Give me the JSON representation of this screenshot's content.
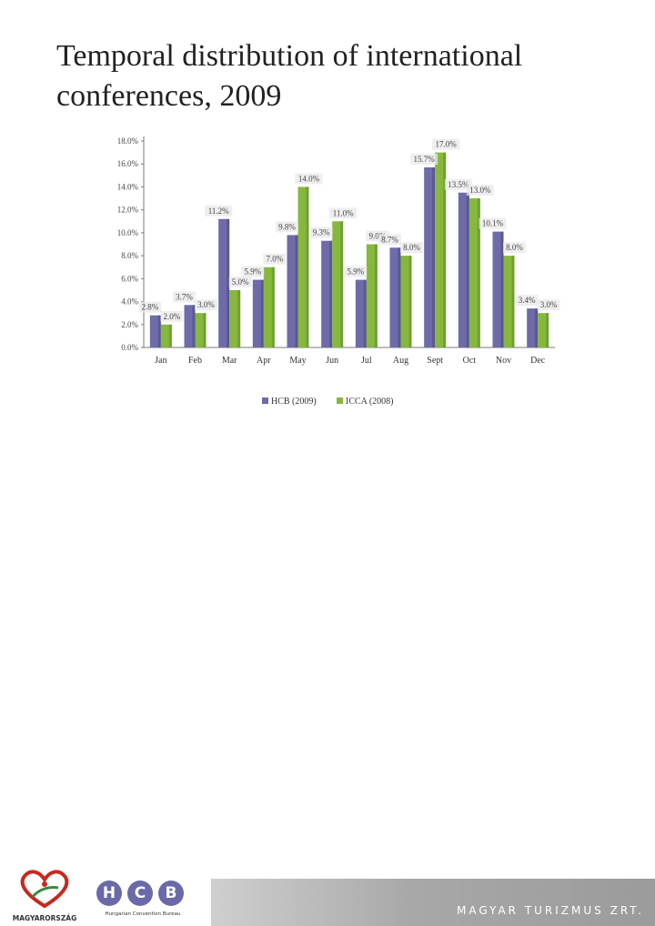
{
  "title": "Temporal distribution of international conferences, 2009",
  "colors": {
    "hcb": "#6e6ba8",
    "icca": "#86b83e"
  },
  "footer": {
    "country_logo_text": "MAGYARORSZÁG",
    "hcb_logo_letters": [
      "H",
      "C",
      "B"
    ],
    "hcb_logo_subtext": "Hungarian Convention Bureau",
    "banner_text": "MAGYAR TURIZMUS ZRT."
  },
  "chart_data": {
    "type": "bar",
    "title": "",
    "xlabel": "",
    "ylabel": "",
    "ylim": [
      0,
      18
    ],
    "yticks": [
      "0.0%",
      "2.0%",
      "4.0%",
      "6.0%",
      "8.0%",
      "10.0%",
      "12.0%",
      "14.0%",
      "16.0%",
      "18.0%"
    ],
    "categories": [
      "Jan",
      "Feb",
      "Mar",
      "Apr",
      "May",
      "Jun",
      "Jul",
      "Aug",
      "Sept",
      "Oct",
      "Nov",
      "Dec"
    ],
    "series": [
      {
        "name": "HCB (2009)",
        "values": [
          2.8,
          3.7,
          11.2,
          5.9,
          9.8,
          9.3,
          5.9,
          8.7,
          15.7,
          13.5,
          10.1,
          3.4
        ],
        "labels": [
          "2.8%",
          "3.7%",
          "11.2%",
          "5.9%",
          "9.8%",
          "9.3%",
          "5.9%",
          "8.7%",
          "15.7%",
          "13.5%",
          "10.1%",
          "3.4%"
        ]
      },
      {
        "name": "ICCA (2008)",
        "values": [
          2.0,
          3.0,
          5.0,
          7.0,
          14.0,
          11.0,
          9.0,
          8.0,
          17.0,
          13.0,
          8.0,
          3.0
        ],
        "labels": [
          "2.0%",
          "3.0%",
          "5.0%",
          "7.0%",
          "14.0%",
          "11.0%",
          "9.0%",
          "8.0%",
          "17.0%",
          "13.0%",
          "8.0%",
          "3.0%"
        ]
      }
    ],
    "grid": false,
    "legend": "bottom"
  }
}
